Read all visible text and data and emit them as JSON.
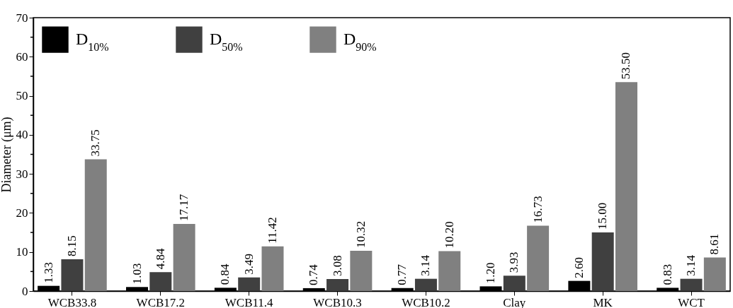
{
  "chart_data": {
    "type": "bar",
    "ylabel": "Diameter (μm)",
    "categories": [
      "WCB33.8",
      "WCB17.2",
      "WCB11.4",
      "WCB10.3",
      "WCB10.2",
      "Clay",
      "MK",
      "WCT"
    ],
    "series": [
      {
        "name": "D$_{10%}$",
        "color": "#000000",
        "values": [
          1.33,
          1.03,
          0.84,
          0.74,
          0.77,
          1.2,
          2.6,
          0.83
        ]
      },
      {
        "name": "D$_{50%}$",
        "color": "#404040",
        "values": [
          8.15,
          4.84,
          3.49,
          3.08,
          3.14,
          3.93,
          15.0,
          3.14
        ]
      },
      {
        "name": "D$_{90%}$",
        "color": "#808080",
        "values": [
          33.75,
          17.17,
          11.42,
          10.32,
          10.2,
          16.73,
          53.5,
          8.61
        ]
      }
    ],
    "value_labels": [
      [
        "1.33",
        "1.03",
        "0.84",
        "0.74",
        "0.77",
        "1.20",
        "2.60",
        "0.83"
      ],
      [
        "8.15",
        "4.84",
        "3.49",
        "3.08",
        "3.14",
        "3.93",
        "15.00",
        "3.14"
      ],
      [
        "33.75",
        "17.17",
        "11.42",
        "10.32",
        "10.20",
        "16.73",
        "53.50",
        "8.61"
      ]
    ],
    "ylim": [
      0,
      70
    ],
    "yticks": [
      0,
      {
        "value": 5,
        "label": null
      },
      10,
      {
        "value": 15,
        "label": null
      },
      20,
      {
        "value": 25,
        "label": null
      },
      30,
      {
        "value": 35,
        "label": null
      },
      40,
      {
        "value": 45,
        "label": null
      },
      50,
      {
        "value": 55,
        "label": null
      },
      60,
      {
        "value": 65,
        "label": null
      },
      70
    ],
    "grid": false,
    "legend": "top left"
  }
}
